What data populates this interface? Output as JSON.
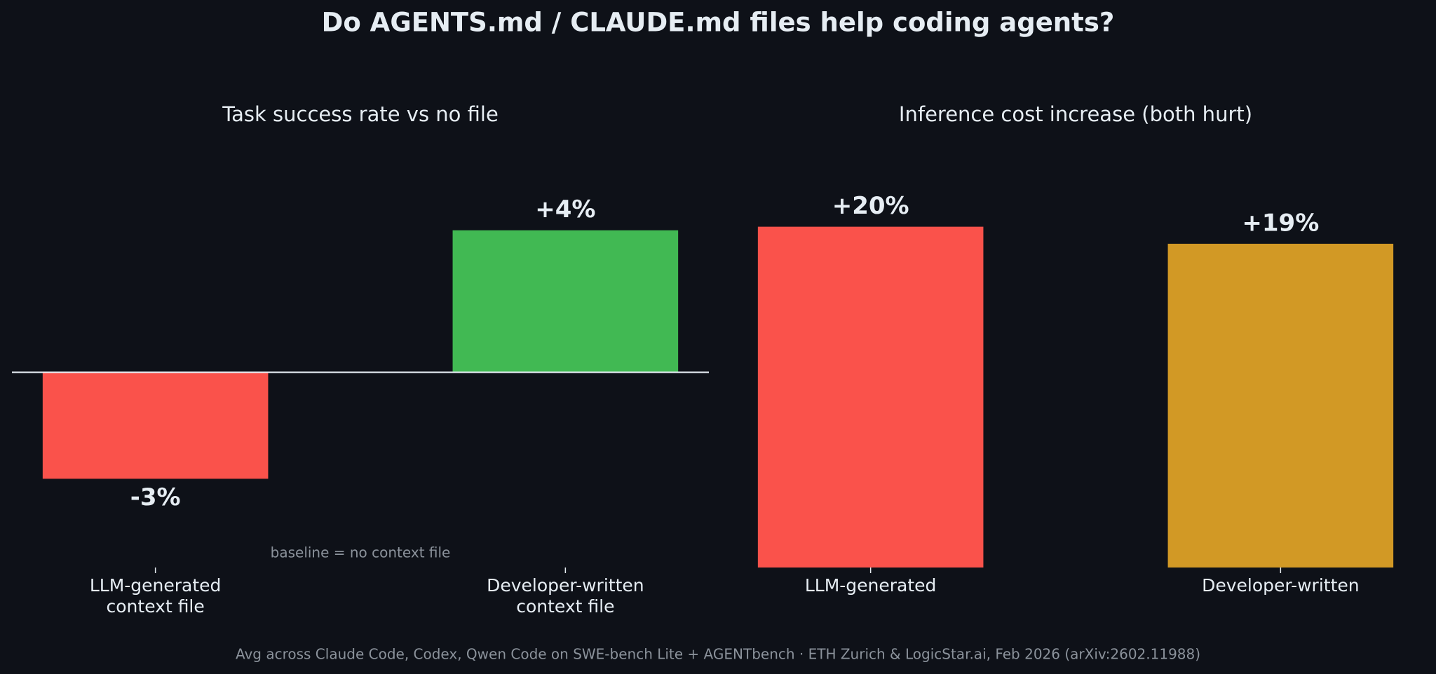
{
  "title": "Do AGENTS.md / CLAUDE.md files help coding agents?",
  "footer": "Avg across Claude Code, Codex, Qwen Code on SWE-bench Lite + AGENTbench  ·  ETH Zurich & LogicStar.ai, Feb 2026 (arXiv:2602.11988)",
  "chart_data": [
    {
      "type": "bar",
      "title": "Task success rate vs no file",
      "note": "baseline = no context file",
      "categories": [
        "LLM-generated\ncontext file",
        "Developer-written\ncontext file"
      ],
      "values": [
        -3,
        4
      ],
      "value_labels": [
        "-3%",
        "+4%"
      ],
      "colors": [
        "#fa524b",
        "#41b953"
      ],
      "ylim": [
        -5.5,
        6.5
      ],
      "zero_line": true
    },
    {
      "type": "bar",
      "title": "Inference cost increase (both hurt)",
      "categories": [
        "LLM-generated",
        "Developer-written"
      ],
      "values": [
        20,
        19
      ],
      "value_labels": [
        "+20%",
        "+19%"
      ],
      "colors": [
        "#fa524b",
        "#d29925"
      ],
      "ylim": [
        0,
        25
      ],
      "zero_line": false
    }
  ]
}
